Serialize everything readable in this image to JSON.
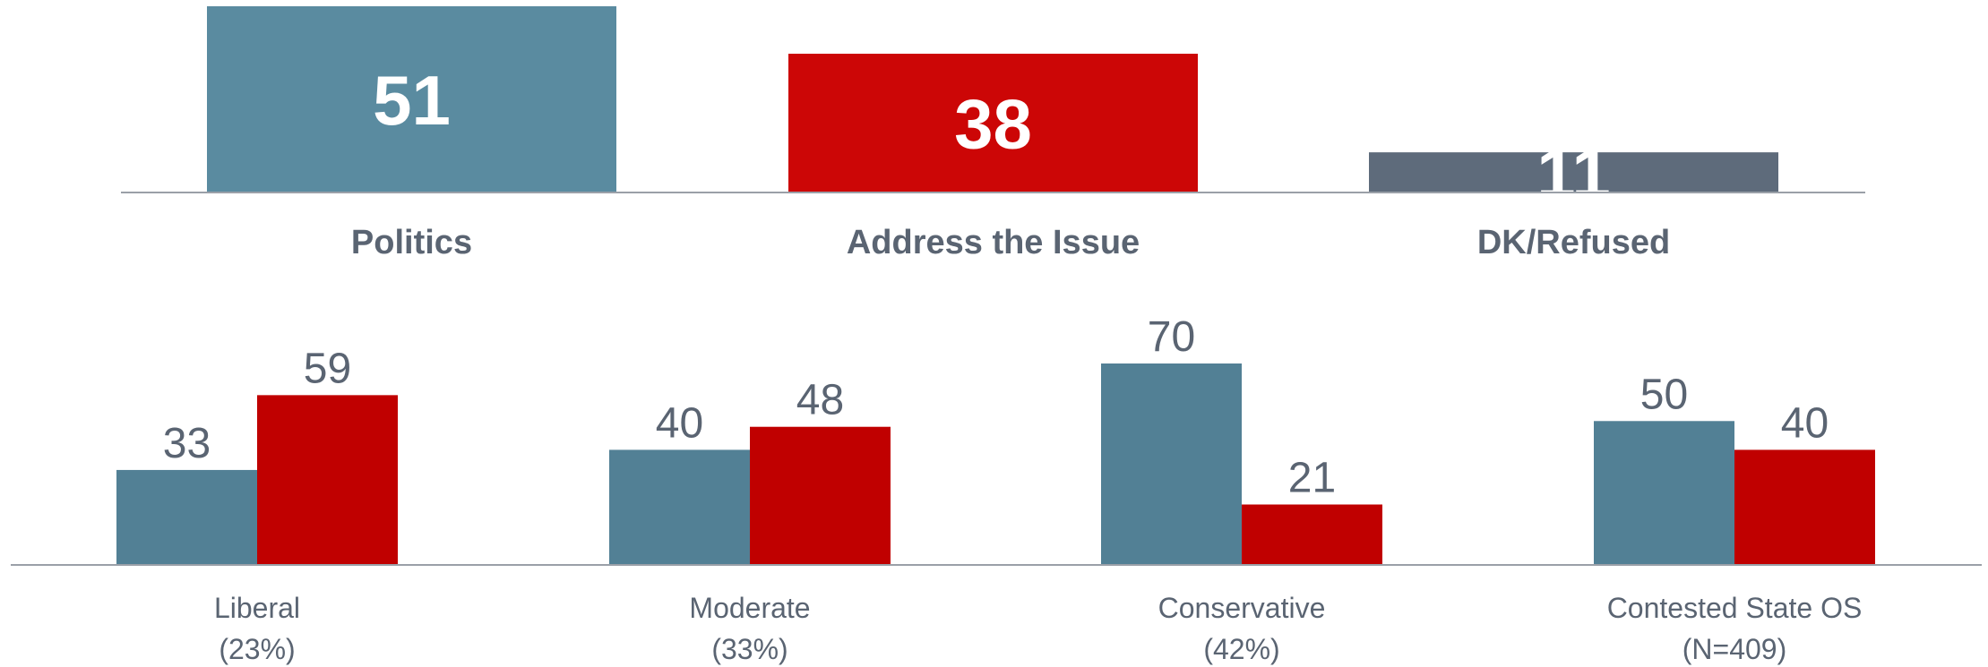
{
  "chart_data": [
    {
      "type": "bar",
      "categories": [
        "Politics",
        "Address the Issue",
        "DK/Refused"
      ],
      "values": [
        51,
        38,
        11
      ],
      "colors": [
        "#5a8ba0",
        "#cc0606",
        "#5e6b7b"
      ],
      "ylim": [
        0,
        51
      ]
    },
    {
      "type": "bar",
      "categories": [
        "Liberal",
        "Moderate",
        "Conservative",
        "Contested State OS"
      ],
      "category_sublabels": [
        "(23%)",
        "(33%)",
        "(42%)",
        ""
      ],
      "category_sublabels_2": [
        "",
        "",
        "",
        "(N=409)"
      ],
      "series": [
        {
          "values": [
            33,
            40,
            70,
            50
          ],
          "color": "#528095"
        },
        {
          "values": [
            59,
            48,
            21,
            40
          ],
          "color": "#c00000"
        }
      ],
      "ylim": [
        0,
        70
      ]
    }
  ]
}
